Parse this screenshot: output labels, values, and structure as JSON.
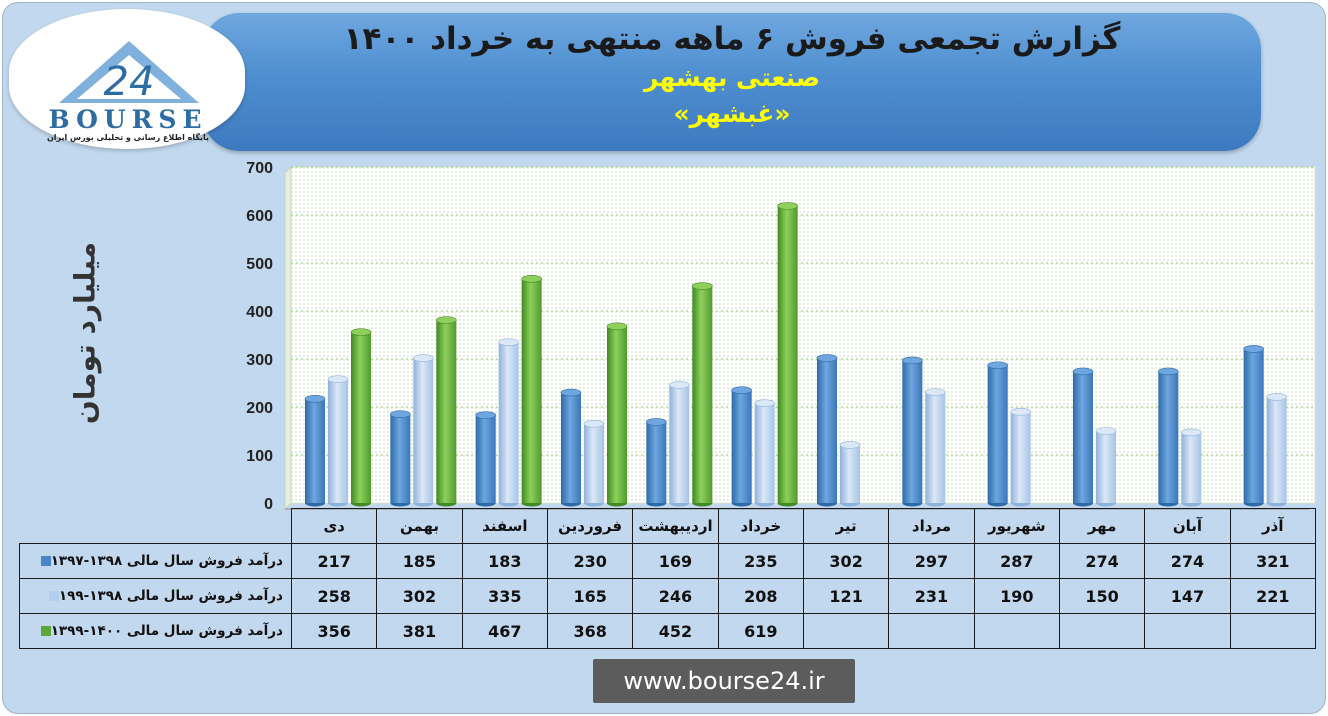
{
  "header": {
    "title": "گزارش تجمعی فروش ۶ ماهه منتهی به خرداد ۱۴۰۰",
    "subtitle": "صنعتی بهشهر",
    "company": "«غبشهر»"
  },
  "logo": {
    "mark": "24",
    "word": "BOURSE",
    "tagline": "پایگاه اطلاع رسانی و تحلیلی بورس ایران"
  },
  "footer": {
    "website": "www.bourse24.ir"
  },
  "colors": {
    "series1": "#4a86c8",
    "series2": "#b3cdeb",
    "series3": "#5fa63a"
  },
  "chart_data": {
    "type": "bar",
    "title": "گزارش تجمعی فروش ۶ ماهه منتهی به خرداد ۱۴۰۰",
    "ylabel": "میلیارد تومان",
    "xlabel": "",
    "ylim": [
      0,
      700
    ],
    "yticks": [
      0,
      100,
      200,
      300,
      400,
      500,
      600,
      700
    ],
    "grid": true,
    "categories": [
      "دی",
      "بهمن",
      "اسفند",
      "فروردین",
      "اردیبهشت",
      "خرداد",
      "تیر",
      "مرداد",
      "شهریور",
      "مهر",
      "آبان",
      "آذر"
    ],
    "series": [
      {
        "name": "درآمد فروش سال مالی ۱۳۹۸-۱۳۹۷",
        "values": [
          217,
          185,
          183,
          230,
          169,
          235,
          302,
          297,
          287,
          274,
          274,
          321
        ]
      },
      {
        "name": "درآمد فروش سال مالی ۱۳۹۸-۱۹۹",
        "values": [
          258,
          302,
          335,
          165,
          246,
          208,
          121,
          231,
          190,
          150,
          147,
          221
        ]
      },
      {
        "name": "درآمد فروش سال مالی ۱۴۰۰-۱۳۹۹",
        "values": [
          356,
          381,
          467,
          368,
          452,
          619,
          null,
          null,
          null,
          null,
          null,
          null
        ]
      }
    ]
  }
}
